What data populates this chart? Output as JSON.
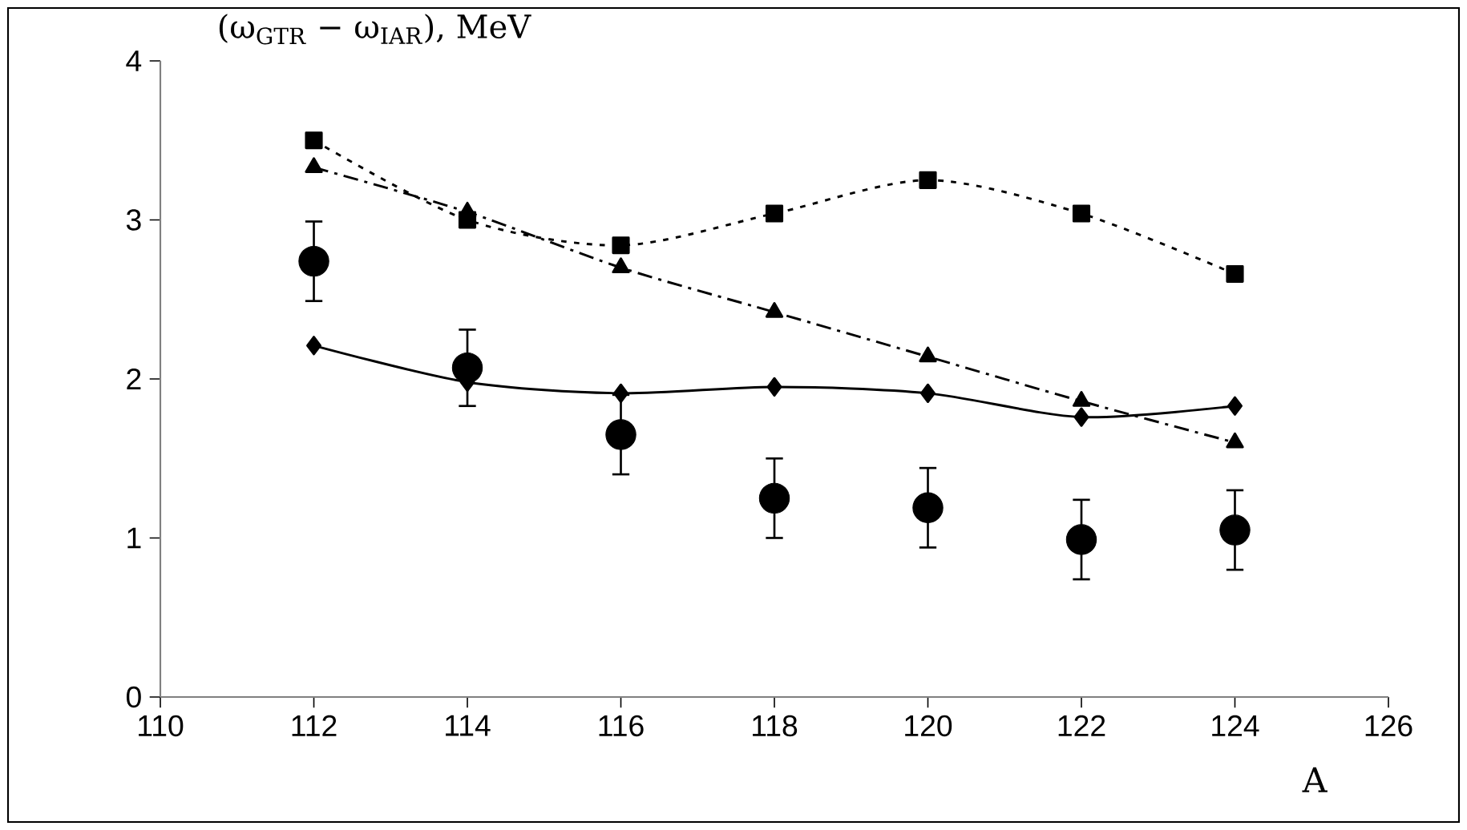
{
  "chart_data": {
    "type": "line",
    "ylabel": "(ω$_{GTR}$ − ω$_{IAR}$), MeV",
    "xlabel": "A",
    "xlim": [
      110,
      126
    ],
    "xticks": [
      110,
      112,
      114,
      116,
      118,
      120,
      122,
      124,
      126
    ],
    "ylim": [
      0,
      4
    ],
    "yticks": [
      0,
      1,
      2,
      3,
      4
    ],
    "grid": false,
    "x": [
      112,
      114,
      116,
      118,
      120,
      122,
      124
    ],
    "series": [
      {
        "color": "#000000",
        "marker": "square",
        "line_style": "dotted",
        "values": [
          3.5,
          3.0,
          2.84,
          3.04,
          3.25,
          3.04,
          2.66
        ]
      },
      {
        "color": "#000000",
        "marker": "triangle",
        "line_style": "dashed",
        "values": [
          3.33,
          3.05,
          2.7,
          2.42,
          2.14,
          1.86,
          1.6
        ]
      },
      {
        "color": "#000000",
        "marker": "diamond",
        "line_style": "solid",
        "values": [
          2.21,
          1.98,
          1.91,
          1.95,
          1.91,
          1.76,
          1.83
        ]
      },
      {
        "type": "scatter",
        "color": "#000000",
        "marker": "circle",
        "values": [
          2.74,
          2.07,
          1.65,
          1.25,
          1.19,
          0.99,
          1.05
        ],
        "errors": [
          0.25,
          0.24,
          0.25,
          0.25,
          0.25,
          0.25,
          0.25
        ]
      }
    ]
  }
}
